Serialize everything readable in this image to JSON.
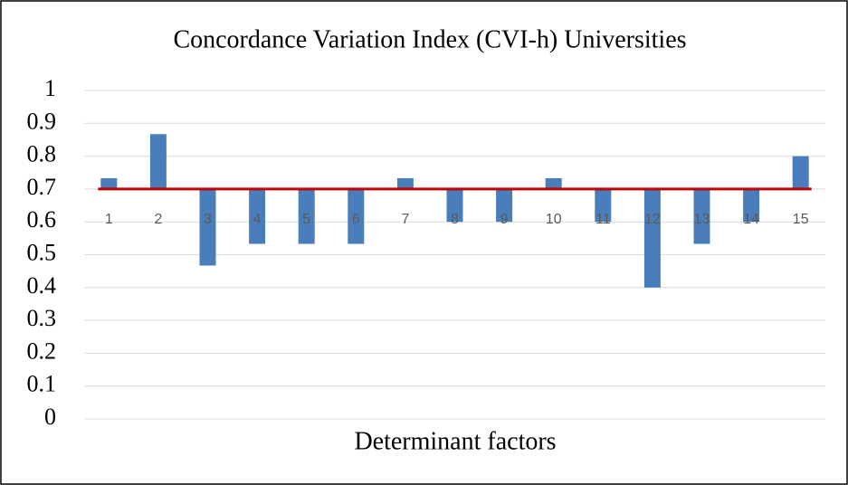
{
  "chart_data": {
    "type": "bar",
    "title": "Concordance Variation Index (CVI-h) Universities",
    "x_label": "Determinant factors",
    "categories": [
      "1",
      "2",
      "3",
      "4",
      "5",
      "6",
      "7",
      "8",
      "9",
      "10",
      "11",
      "12",
      "13",
      "14",
      "15"
    ],
    "values": [
      0.733,
      0.867,
      0.467,
      0.533,
      0.533,
      0.533,
      0.733,
      0.6,
      0.6,
      0.733,
      0.6,
      0.4,
      0.533,
      0.6,
      0.8
    ],
    "color": "#4a7ebb",
    "baseline": 0.7,
    "baseline_color": "#c00000",
    "ylim": [
      0,
      1
    ],
    "yticks": [
      0,
      0.1,
      0.2,
      0.3,
      0.4,
      0.5,
      0.6,
      0.7,
      0.8,
      0.9,
      1
    ],
    "grid": true
  }
}
